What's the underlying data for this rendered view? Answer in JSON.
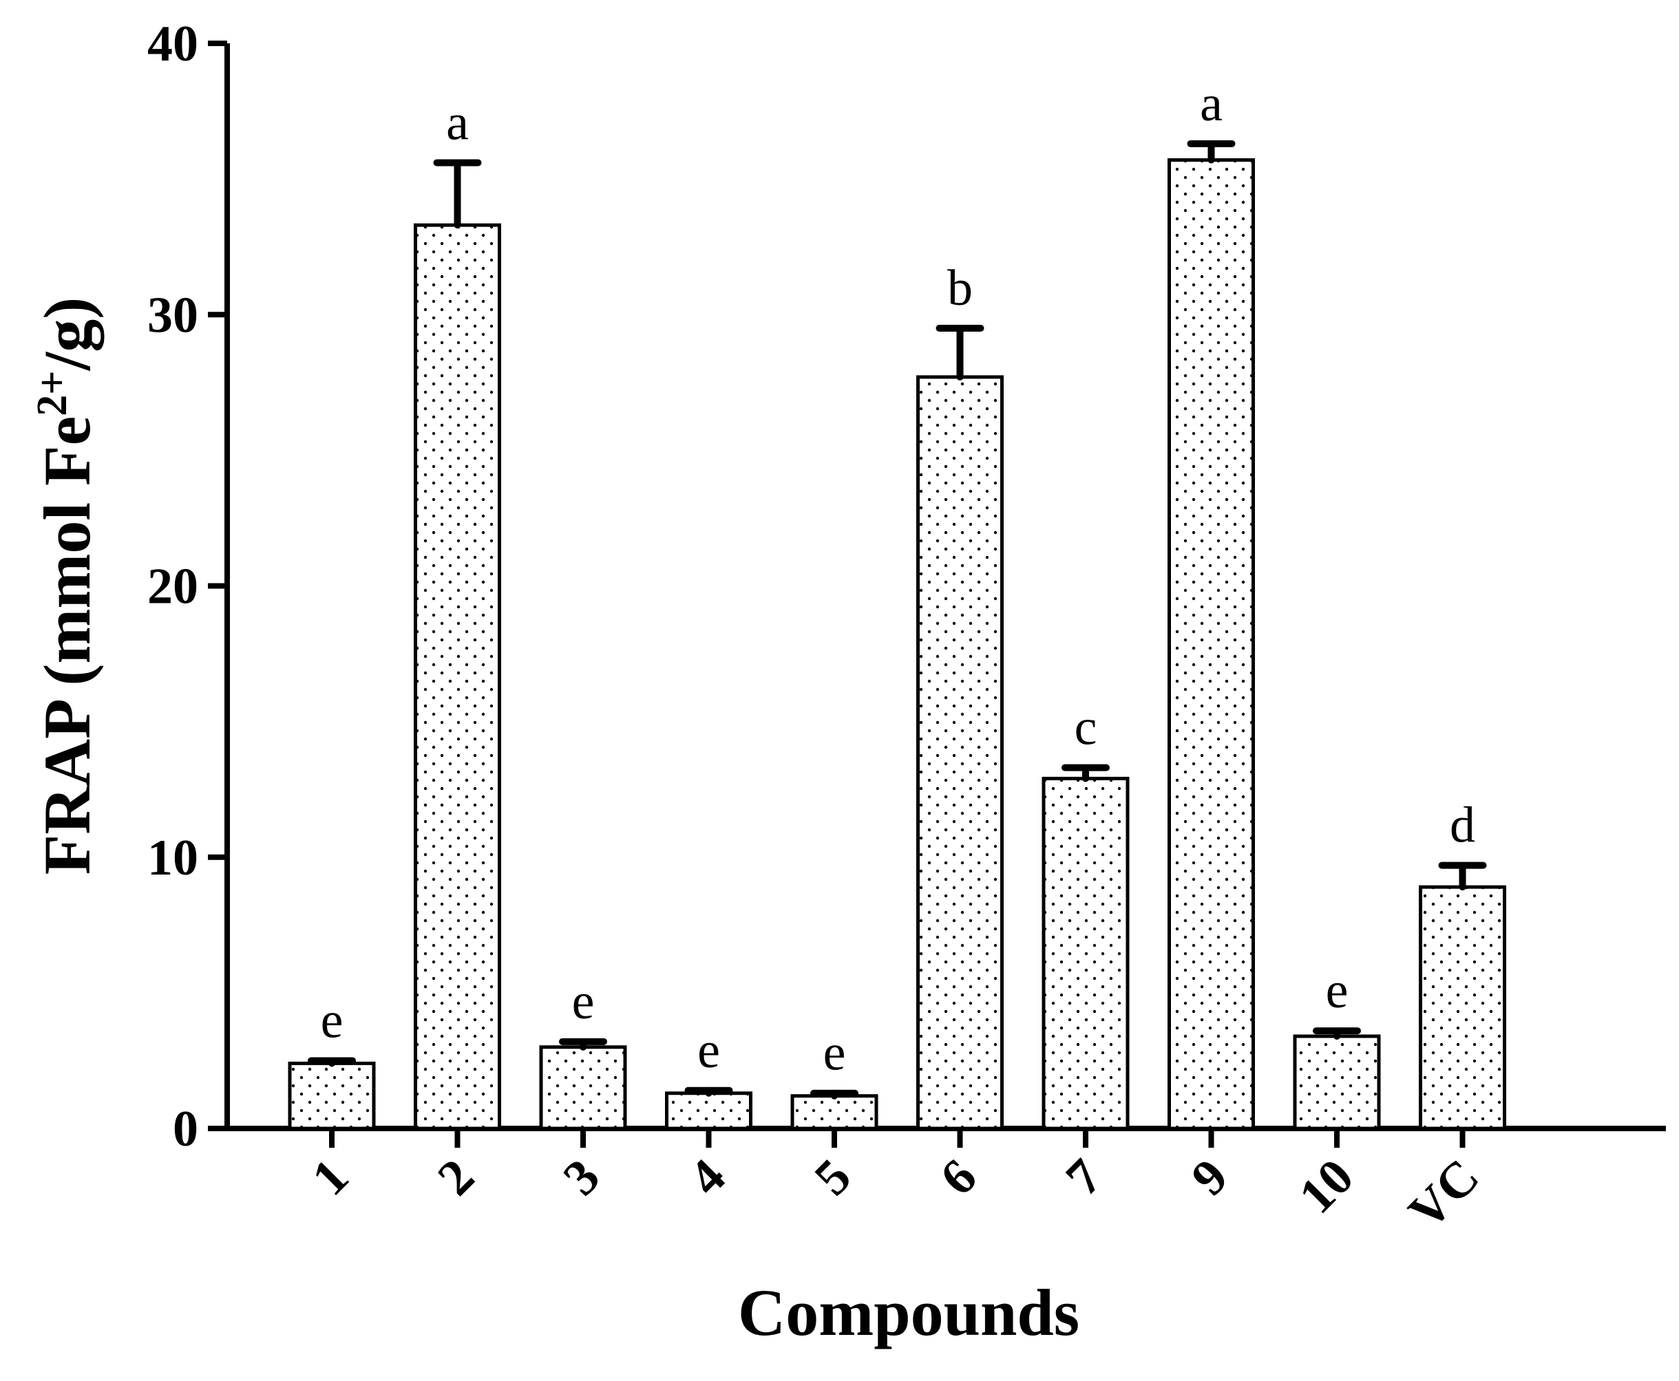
{
  "chart_data": {
    "type": "bar",
    "categories": [
      "1",
      "2",
      "3",
      "4",
      "5",
      "6",
      "7",
      "9",
      "10",
      "VC"
    ],
    "values": [
      2.4,
      33.3,
      3.0,
      1.3,
      1.2,
      27.7,
      12.9,
      35.7,
      3.4,
      8.9
    ],
    "errors": [
      0.1,
      2.3,
      0.2,
      0.1,
      0.1,
      1.8,
      0.4,
      0.6,
      0.2,
      0.8
    ],
    "significance": [
      "e",
      "a",
      "e",
      "e",
      "e",
      "b",
      "c",
      "a",
      "e",
      "d"
    ],
    "xlabel": "Compounds",
    "ylabel": {
      "prefix": "FRAP (mmol Fe",
      "superscript": "2+",
      "suffix": "/g)"
    },
    "ylim": [
      0,
      40
    ],
    "yticks": [
      "0",
      "10",
      "20",
      "30",
      "40"
    ],
    "grid": false,
    "colors": {
      "bar_fill": "#ffffff",
      "bar_pattern": "#000000",
      "axis": "#000000"
    }
  }
}
